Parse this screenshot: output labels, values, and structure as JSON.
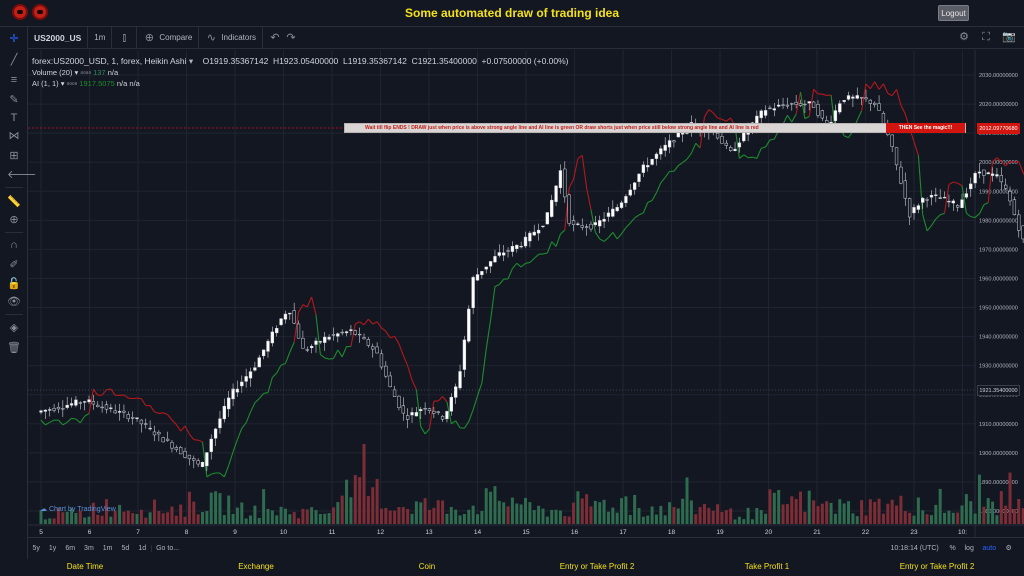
{
  "site": {
    "title": "Some automated draw of trading idea",
    "logout_label": "Logout"
  },
  "toolbar": {
    "symbol": "US2000_US",
    "interval": "1m",
    "compare_label": "Compare",
    "indicators_label": "Indicators"
  },
  "legend": {
    "main_title": "forex:US2000_USD, 1, forex, Heikin Ashi",
    "open": "O1919.35367142",
    "high": "H1923.05400000",
    "low": "L1919.35367142",
    "close": "C1921.35400000",
    "change": "+0.07500000 (+0.00%)",
    "volume_label": "Volume (20)",
    "volume_value": "137",
    "volume_extra": "n/a",
    "ai_label": "AI (1, 1)",
    "ai_value": "1917.5075",
    "ai_na1": "n/a",
    "ai_na2": "n/a"
  },
  "signal_bar": {
    "text": "Wait till flip ENDS !   DRAW just when price is above strong angle line and AI line is green     OR     draw shorts just when price still below strong angle line and AI line is red",
    "magic": "THEN See the magic!!!",
    "price": "2012.09770680"
  },
  "last_price": "1921.35400000",
  "watermark": "Chart by TradingView",
  "bottombar": {
    "ranges": [
      "5y",
      "1y",
      "6m",
      "3m",
      "1m",
      "5d",
      "1d"
    ],
    "goto": "Go to...",
    "time": "10:18:14 (UTC)",
    "percent": "%",
    "log": "log",
    "auto": "auto"
  },
  "footer": [
    "Date Time",
    "Exchange",
    "Coin",
    "Entry or Take Profit 2",
    "Take Profit 1",
    "Entry or Take Profit 2"
  ],
  "colors": {
    "background": "#131722",
    "title": "#f5e11a",
    "up": "#ffffff",
    "down": "#131722",
    "ai_green": "#1e8c2e",
    "ai_red": "#b3191c",
    "vol_up": "#2e6b4f",
    "vol_down": "#7d2d36",
    "signal_red": "#d2150f"
  },
  "chart_data": {
    "type": "candlestick",
    "price_axis": {
      "min": 1880,
      "max": 2030,
      "step": 10,
      "decimals": 8
    },
    "price_ticks": [
      "2030.00000000",
      "2020.00000000",
      "2010.00000000",
      "2000.00000000",
      "1990.00000000",
      "1980.00000000",
      "1970.00000000",
      "1960.00000000",
      "1950.00000000",
      "1940.00000000",
      "1930.00000000",
      "1920.00000000",
      "1910.00000000",
      "1900.00000000",
      "1890.00000000",
      "1880.00000000"
    ],
    "time_labels": [
      "5",
      "6",
      "7",
      "8",
      "9",
      "10",
      "11",
      "12",
      "13",
      "14",
      "15",
      "16",
      "17",
      "18",
      "19",
      "20",
      "21",
      "22",
      "23",
      "10:"
    ],
    "price_path": [
      [
        0,
        1914
      ],
      [
        1,
        1918
      ],
      [
        2,
        1912
      ],
      [
        3,
        1900
      ],
      [
        3.4,
        1895
      ],
      [
        3.6,
        1905
      ],
      [
        4,
        1920
      ],
      [
        4.5,
        1930
      ],
      [
        5,
        1945
      ],
      [
        5.2,
        1950
      ],
      [
        5.5,
        1935
      ],
      [
        6,
        1940
      ],
      [
        6.5,
        1942
      ],
      [
        7,
        1935
      ],
      [
        7.3,
        1922
      ],
      [
        7.6,
        1912
      ],
      [
        8,
        1916
      ],
      [
        8.4,
        1912
      ],
      [
        8.7,
        1925
      ],
      [
        9,
        1960
      ],
      [
        9.5,
        1968
      ],
      [
        10,
        1972
      ],
      [
        10.5,
        1980
      ],
      [
        10.8,
        1997
      ],
      [
        11,
        1978
      ],
      [
        11.5,
        1978
      ],
      [
        12,
        1985
      ],
      [
        12.5,
        1998
      ],
      [
        13,
        2006
      ],
      [
        13.5,
        2013
      ],
      [
        14,
        2010
      ],
      [
        14.3,
        2003
      ],
      [
        14.6,
        2010
      ],
      [
        15,
        2018
      ],
      [
        15.5,
        2020
      ],
      [
        16,
        2020
      ],
      [
        16.3,
        2012
      ],
      [
        16.6,
        2022
      ],
      [
        17,
        2022
      ],
      [
        17.3,
        2020
      ],
      [
        17.6,
        2007
      ],
      [
        18,
        1982
      ],
      [
        18.3,
        1988
      ],
      [
        18.6,
        1988
      ],
      [
        19,
        1985
      ],
      [
        19.4,
        1997
      ],
      [
        19.8,
        1995
      ],
      [
        20,
        1990
      ],
      [
        20.3,
        1975
      ],
      [
        20.6,
        1960
      ],
      [
        21,
        1952
      ],
      [
        21.4,
        1945
      ],
      [
        21.7,
        1935
      ],
      [
        22,
        1928
      ],
      [
        22.4,
        1915
      ],
      [
        22.8,
        1914
      ],
      [
        23,
        1916
      ],
      [
        23.3,
        1912
      ],
      [
        23.6,
        1918
      ],
      [
        23.8,
        1919.35
      ]
    ],
    "volume_levels": [
      0.3,
      0.5,
      0.45,
      0.6,
      0.4,
      0.35,
      0.9,
      0.55,
      0.5,
      0.7,
      0.4,
      0.6,
      0.45,
      0.5,
      0.3,
      0.65,
      0.5,
      0.55,
      0.4,
      0.6
    ]
  }
}
